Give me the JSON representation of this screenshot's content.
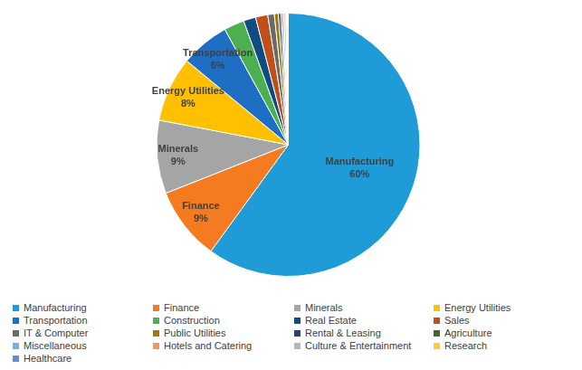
{
  "chart_data": {
    "type": "pie",
    "categories": [
      "Manufacturing",
      "Finance",
      "Minerals",
      "Energy Utilities",
      "Transportation",
      "Construction",
      "Real Estate",
      "Sales",
      "IT & Computer",
      "Public Utilities",
      "Rental & Leasing",
      "Agriculture",
      "Miscellaneous",
      "Hotels and Catering",
      "Culture & Entertainment",
      "Research",
      "Healthcare"
    ],
    "values": [
      60,
      9,
      9,
      8,
      6,
      2.5,
      1.5,
      1.5,
      0.8,
      0.5,
      0.3,
      0.2,
      0.2,
      0.2,
      0.1,
      0.1,
      0.1
    ],
    "value_labels": [
      "60%",
      "9%",
      "9%",
      "8%",
      "6%",
      null,
      null,
      null,
      null,
      null,
      null,
      null,
      null,
      null,
      null,
      null,
      null
    ],
    "colors": [
      "#1f9bd7",
      "#f47b20",
      "#a5a5a5",
      "#ffc000",
      "#1e6fc4",
      "#4caf50",
      "#0f4c81",
      "#c0501a",
      "#6a6a6a",
      "#a07a10",
      "#264478",
      "#43682b",
      "#7cafdd",
      "#f1975a",
      "#b7b7b7",
      "#ffcd33",
      "#698ed0"
    ],
    "data_labels": true,
    "legend": "bottom"
  }
}
